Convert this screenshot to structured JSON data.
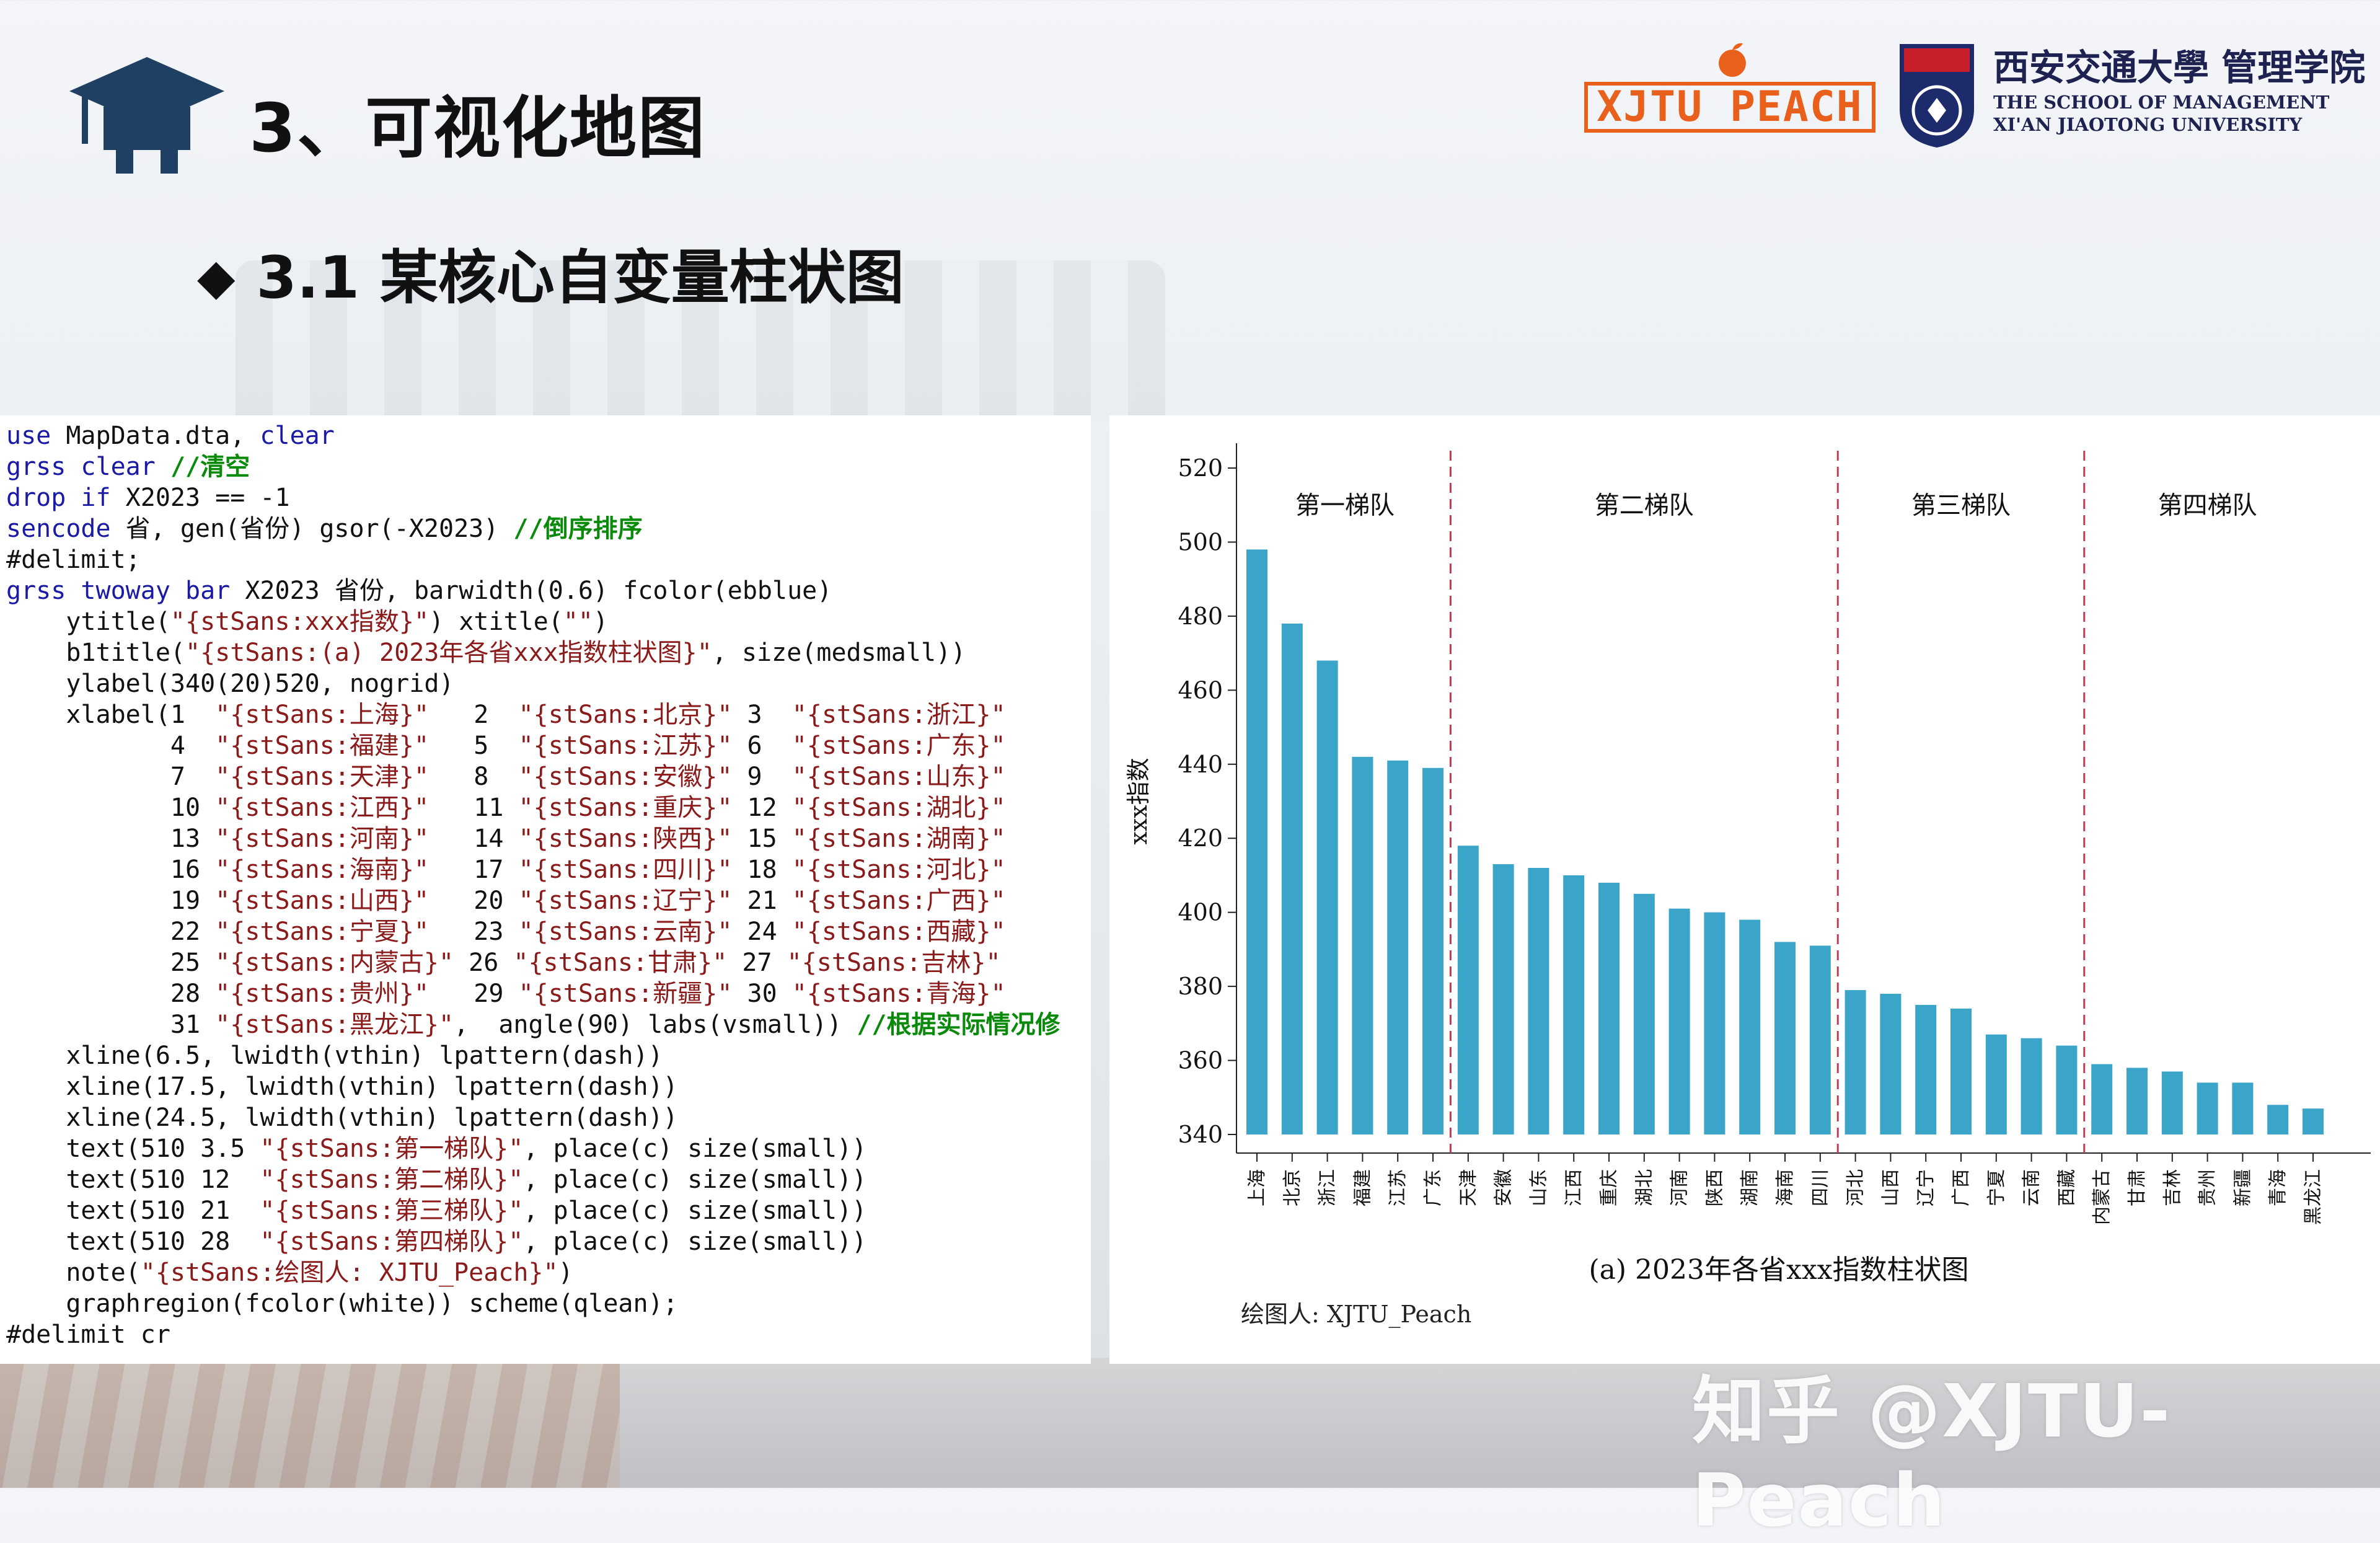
{
  "header": {
    "title": "3、可视化地图",
    "subtitle_bullet": "◆",
    "subtitle": "3.1 某核心自变量柱状图"
  },
  "logos": {
    "peach_text": "XJTU PEACH",
    "school_cn": "西安交通大學 管理学院",
    "school_en_line1": "THE SCHOOL OF MANAGEMENT",
    "school_en_line2": "XI'AN JIAOTONG UNIVERSITY",
    "emblem_text": "管理学院"
  },
  "code": {
    "lines": [
      "use MapData.dta, clear",
      "grss clear //清空",
      "drop if X2023 == -1",
      "sencode 省, gen(省份) gsor(-X2023) //倒序排序",
      "#delimit;",
      "grss twoway bar X2023 省份, barwidth(0.6) fcolor(ebblue)",
      "    ytitle(\"{stSans:xxx指数}\") xtitle(\"\")",
      "    b1title(\"{stSans:(a) 2023年各省xxx指数柱状图}\", size(medsmall))",
      "    ylabel(340(20)520, nogrid)",
      "    xlabel(1  \"{stSans:上海}\"   2  \"{stSans:北京}\" 3  \"{stSans:浙江}\"",
      "           4  \"{stSans:福建}\"   5  \"{stSans:江苏}\" 6  \"{stSans:广东}\"",
      "           7  \"{stSans:天津}\"   8  \"{stSans:安徽}\" 9  \"{stSans:山东}\"",
      "           10 \"{stSans:江西}\"   11 \"{stSans:重庆}\" 12 \"{stSans:湖北}\"",
      "           13 \"{stSans:河南}\"   14 \"{stSans:陕西}\" 15 \"{stSans:湖南}\"",
      "           16 \"{stSans:海南}\"   17 \"{stSans:四川}\" 18 \"{stSans:河北}\"",
      "           19 \"{stSans:山西}\"   20 \"{stSans:辽宁}\" 21 \"{stSans:广西}\"",
      "           22 \"{stSans:宁夏}\"   23 \"{stSans:云南}\" 24 \"{stSans:西藏}\"",
      "           25 \"{stSans:内蒙古}\" 26 \"{stSans:甘肃}\" 27 \"{stSans:吉林}\"",
      "           28 \"{stSans:贵州}\"   29 \"{stSans:新疆}\" 30 \"{stSans:青海}\"",
      "           31 \"{stSans:黑龙江}\",  angle(90) labs(vsmall)) //根据实际情况修",
      "    xline(6.5, lwidth(vthin) lpattern(dash))",
      "    xline(17.5, lwidth(vthin) lpattern(dash))",
      "    xline(24.5, lwidth(vthin) lpattern(dash))",
      "    text(510 3.5 \"{stSans:第一梯队}\", place(c) size(small))",
      "    text(510 12  \"{stSans:第二梯队}\", place(c) size(small))",
      "    text(510 21  \"{stSans:第三梯队}\", place(c) size(small))",
      "    text(510 28  \"{stSans:第四梯队}\", place(c) size(small))",
      "    note(\"{stSans:绘图人: XJTU_Peach}\")",
      "    graphregion(fcolor(white)) scheme(qlean);",
      "#delimit cr"
    ]
  },
  "chart_data": {
    "type": "bar",
    "categories": [
      "上海",
      "北京",
      "浙江",
      "福建",
      "江苏",
      "广东",
      "天津",
      "安徽",
      "山东",
      "江西",
      "重庆",
      "湖北",
      "河南",
      "陕西",
      "湖南",
      "海南",
      "四川",
      "河北",
      "山西",
      "辽宁",
      "广西",
      "宁夏",
      "云南",
      "西藏",
      "内蒙古",
      "甘肃",
      "吉林",
      "贵州",
      "新疆",
      "青海",
      "黑龙江"
    ],
    "values": [
      498,
      478,
      468,
      442,
      441,
      439,
      418,
      413,
      412,
      410,
      408,
      405,
      401,
      400,
      398,
      392,
      391,
      379,
      378,
      375,
      374,
      367,
      366,
      364,
      359,
      358,
      357,
      354,
      354,
      348,
      347
    ],
    "ylabel": "xxx指数",
    "xlabel": "",
    "ylim": [
      340,
      520
    ],
    "yticks": [
      340,
      360,
      380,
      400,
      420,
      440,
      460,
      480,
      500,
      520
    ],
    "bar_color": "#3aa5c9",
    "divider_color": "#c23b4e",
    "dividers_after_index": [
      6.5,
      17.5,
      24.5
    ],
    "tier_labels": [
      {
        "text": "第一梯队",
        "x": 3.5,
        "y": 510
      },
      {
        "text": "第二梯队",
        "x": 12,
        "y": 510
      },
      {
        "text": "第三梯队",
        "x": 21,
        "y": 510
      },
      {
        "text": "第四梯队",
        "x": 28,
        "y": 510
      }
    ],
    "caption": "(a) 2023年各省xxx指数柱状图",
    "note": "绘图人: XJTU_Peach",
    "grid": false
  },
  "watermark": "知乎 @XJTU-Peach"
}
